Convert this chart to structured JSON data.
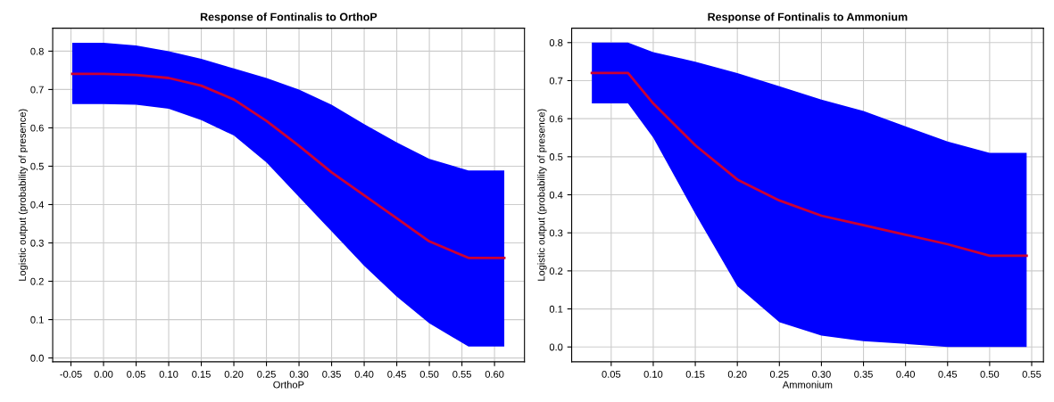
{
  "chart_data": [
    {
      "type": "line",
      "title": "Response of Fontinalis to OrthoP",
      "xlabel": "OrthoP",
      "ylabel": "Logistic output (probability of presence)",
      "xlim": [
        -0.078,
        0.646
      ],
      "ylim": [
        -0.01,
        0.86
      ],
      "xticks": [
        {
          "value": -0.05,
          "label": "-0.05"
        },
        {
          "value": 0,
          "label": "0.00"
        },
        {
          "value": 0.05,
          "label": "0.05"
        },
        {
          "value": 0.1,
          "label": "0.10"
        },
        {
          "value": 0.15,
          "label": "0.15"
        },
        {
          "value": 0.2,
          "label": "0.20"
        },
        {
          "value": 0.25,
          "label": "0.25"
        },
        {
          "value": 0.3,
          "label": "0.30"
        },
        {
          "value": 0.35,
          "label": "0.35"
        },
        {
          "value": 0.4,
          "label": "0.40"
        },
        {
          "value": 0.45,
          "label": "0.45"
        },
        {
          "value": 0.5,
          "label": "0.50"
        },
        {
          "value": 0.55,
          "label": "0.55"
        },
        {
          "value": 0.6,
          "label": "0.60"
        }
      ],
      "yticks": [
        {
          "value": 0,
          "label": "0.0"
        },
        {
          "value": 0.1,
          "label": "0.1"
        },
        {
          "value": 0.2,
          "label": "0.2"
        },
        {
          "value": 0.3,
          "label": "0.3"
        },
        {
          "value": 0.4,
          "label": "0.4"
        },
        {
          "value": 0.5,
          "label": "0.5"
        },
        {
          "value": 0.6,
          "label": "0.6"
        },
        {
          "value": 0.7,
          "label": "0.7"
        },
        {
          "value": 0.8,
          "label": "0.8"
        }
      ],
      "grid": true,
      "series": [
        {
          "color": "#cc0033",
          "x": [
            -0.048,
            0.0,
            0.05,
            0.1,
            0.15,
            0.2,
            0.25,
            0.3,
            0.35,
            0.4,
            0.45,
            0.5,
            0.56,
            0.615
          ],
          "values": [
            0.741,
            0.741,
            0.738,
            0.73,
            0.71,
            0.674,
            0.618,
            0.553,
            0.484,
            0.424,
            0.364,
            0.304,
            0.261,
            0.261
          ],
          "lower": [
            0.662,
            0.662,
            0.66,
            0.65,
            0.62,
            0.58,
            0.51,
            0.42,
            0.33,
            0.24,
            0.16,
            0.09,
            0.03,
            0.03
          ],
          "upper": [
            0.822,
            0.822,
            0.815,
            0.8,
            0.78,
            0.755,
            0.73,
            0.7,
            0.66,
            0.61,
            0.562,
            0.519,
            0.489,
            0.489
          ]
        }
      ]
    },
    {
      "type": "line",
      "title": "Response of Fontinalis to Ammonium",
      "xlabel": "Ammonium",
      "ylabel": "Logistic output (probability of presence)",
      "xlim": [
        0.003,
        0.564
      ],
      "ylim": [
        -0.039,
        0.838
      ],
      "xticks": [
        {
          "value": 0.05,
          "label": "0.05"
        },
        {
          "value": 0.1,
          "label": "0.10"
        },
        {
          "value": 0.15,
          "label": "0.15"
        },
        {
          "value": 0.2,
          "label": "0.20"
        },
        {
          "value": 0.25,
          "label": "0.25"
        },
        {
          "value": 0.3,
          "label": "0.30"
        },
        {
          "value": 0.35,
          "label": "0.35"
        },
        {
          "value": 0.4,
          "label": "0.40"
        },
        {
          "value": 0.45,
          "label": "0.45"
        },
        {
          "value": 0.5,
          "label": "0.50"
        },
        {
          "value": 0.55,
          "label": "0.55"
        }
      ],
      "yticks": [
        {
          "value": 0,
          "label": "0.0"
        },
        {
          "value": 0.1,
          "label": "0.1"
        },
        {
          "value": 0.2,
          "label": "0.2"
        },
        {
          "value": 0.3,
          "label": "0.3"
        },
        {
          "value": 0.4,
          "label": "0.4"
        },
        {
          "value": 0.5,
          "label": "0.5"
        },
        {
          "value": 0.6,
          "label": "0.6"
        },
        {
          "value": 0.7,
          "label": "0.7"
        },
        {
          "value": 0.8,
          "label": "0.8"
        }
      ],
      "grid": true,
      "series": [
        {
          "color": "#cc0033",
          "x": [
            0.027,
            0.07,
            0.1,
            0.15,
            0.2,
            0.25,
            0.3,
            0.35,
            0.4,
            0.45,
            0.5,
            0.544
          ],
          "values": [
            0.72,
            0.72,
            0.64,
            0.53,
            0.44,
            0.385,
            0.345,
            0.32,
            0.295,
            0.27,
            0.24,
            0.24
          ],
          "lower": [
            0.64,
            0.64,
            0.55,
            0.35,
            0.16,
            0.065,
            0.03,
            0.015,
            0.008,
            0.0,
            0.0,
            0.0
          ],
          "upper": [
            0.8,
            0.8,
            0.775,
            0.75,
            0.72,
            0.685,
            0.65,
            0.62,
            0.58,
            0.54,
            0.51,
            0.51
          ]
        }
      ]
    }
  ]
}
